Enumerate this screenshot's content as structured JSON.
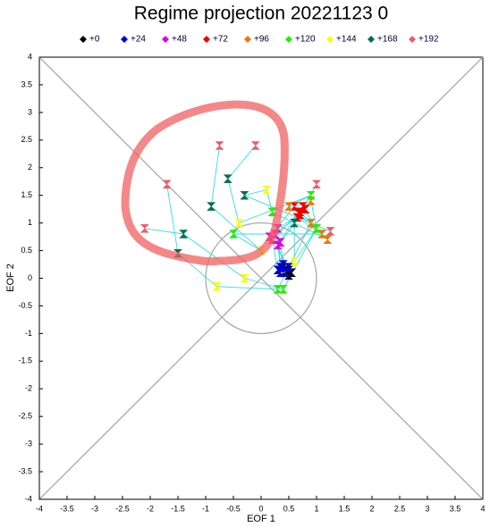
{
  "chart_data": {
    "type": "scatter",
    "title": "Regime projection 20221123 0",
    "x_label": "EOF 1",
    "y_label": "EOF 2",
    "xlim": [
      -4,
      4
    ],
    "ylim": [
      -4,
      4
    ],
    "xticks": [
      -4,
      -3.5,
      -3,
      -2.5,
      -2,
      -1.5,
      -1,
      -0.5,
      0,
      0.5,
      1,
      1.5,
      2,
      2.5,
      3,
      3.5,
      4
    ],
    "yticks": [
      -4,
      -3.5,
      -3,
      -2.5,
      -2,
      -1.5,
      -1,
      -0.5,
      0,
      0.5,
      1,
      1.5,
      2,
      2.5,
      3,
      3.5,
      4
    ],
    "series": [
      {
        "name": "+0",
        "color": "#000000",
        "x": [
          0.4,
          0.5,
          0.45,
          0.55,
          0.5,
          0.4
        ],
        "values": [
          0.1,
          0.15,
          0.12,
          0.1,
          0.05,
          0.2
        ]
      },
      {
        "name": "+24",
        "color": "#0000cc",
        "x": [
          0.3,
          0.35,
          0.45,
          0.4,
          0.5,
          0.35
        ],
        "values": [
          0.15,
          0.2,
          0.1,
          0.25,
          0.2,
          0.1
        ]
      },
      {
        "name": "+48",
        "color": "#dd00dd",
        "x": [
          0.2,
          0.3,
          0.25,
          0.35,
          0.15,
          0.3
        ],
        "values": [
          0.7,
          0.6,
          0.8,
          0.65,
          0.75,
          0.9
        ]
      },
      {
        "name": "+72",
        "color": "#ee0000",
        "x": [
          0.7,
          0.75,
          0.65,
          0.8,
          0.6,
          0.7
        ],
        "values": [
          1.2,
          1.3,
          1.1,
          1.25,
          1.3,
          1.15
        ]
      },
      {
        "name": "+96",
        "color": "#ee7700",
        "x": [
          0.9,
          1.0,
          1.1,
          0.5,
          0.9,
          1.2
        ],
        "values": [
          1.0,
          0.9,
          0.8,
          1.3,
          1.4,
          0.7
        ]
      },
      {
        "name": "+120",
        "color": "#22ee00",
        "x": [
          0.3,
          0.4,
          -0.5,
          0.9,
          1.0,
          0.2
        ],
        "values": [
          -0.2,
          -0.2,
          0.8,
          1.5,
          0.9,
          1.2
        ]
      },
      {
        "name": "+144",
        "color": "#ffff00",
        "x": [
          -0.8,
          -0.3,
          0.0,
          -0.4,
          0.6,
          0.1
        ],
        "values": [
          -0.15,
          0.0,
          0.5,
          1.0,
          0.3,
          1.6
        ]
      },
      {
        "name": "+168",
        "color": "#006d4f",
        "x": [
          -1.5,
          -1.4,
          -0.9,
          -0.6,
          0.6,
          -0.3
        ],
        "values": [
          0.45,
          0.8,
          1.3,
          1.8,
          1.0,
          1.5
        ]
      },
      {
        "name": "+192",
        "color": "#e8606a",
        "x": [
          -1.7,
          -2.1,
          -0.75,
          -0.1,
          1.0,
          1.25
        ],
        "values": [
          1.7,
          0.9,
          2.4,
          2.4,
          1.7,
          0.85
        ]
      }
    ]
  }
}
